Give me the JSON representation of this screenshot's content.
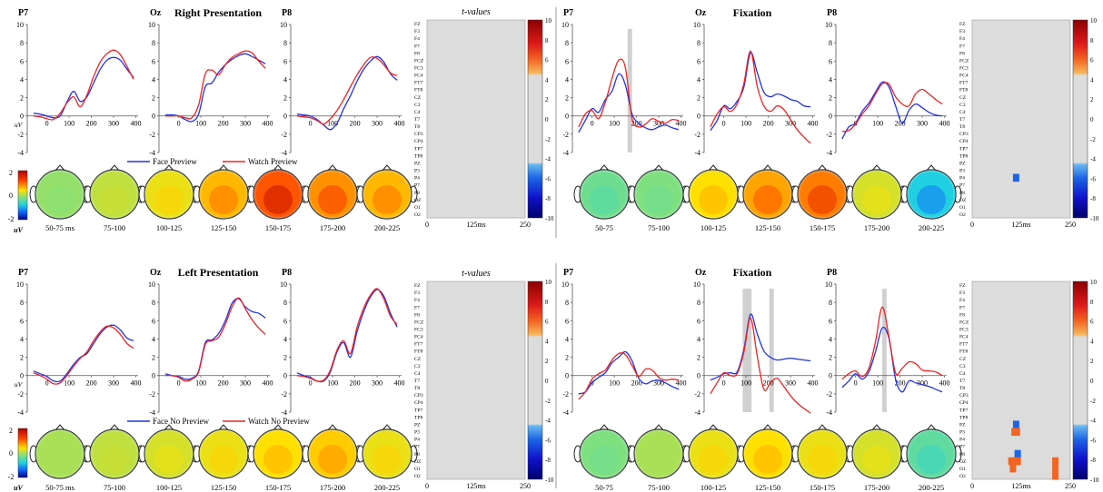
{
  "colors": {
    "blue": "#2233dd",
    "red": "#ee2222",
    "mask_gray": "#dcdcdc",
    "sig_bar": "#c8c8c8",
    "pos_orange": "#f26522",
    "neg_blue": "#1b64e6"
  },
  "channels": [
    "FZ",
    "F3",
    "F4",
    "F7",
    "F8",
    "FCZ",
    "FC3",
    "FC4",
    "FT7",
    "FT8",
    "CZ",
    "C3",
    "C4",
    "T7",
    "T8",
    "CP3",
    "CP4",
    "TP7",
    "TP8",
    "PZ",
    "P3",
    "P4",
    "P7",
    "P8",
    "OZ",
    "O1",
    "O2"
  ],
  "erp_axes": {
    "y_ticks": [
      "10",
      "8",
      "6",
      "4",
      "2",
      "0",
      "-2",
      "-4"
    ],
    "x_ticks": [
      "0",
      "100",
      "200",
      "300",
      "400"
    ],
    "y_unit": "uV"
  },
  "tval_axes": {
    "x_ticks": [
      "0",
      "125ms",
      "250"
    ],
    "label": "t-values"
  },
  "colorbar_ticks": [
    "10",
    "8",
    "6",
    "4",
    "2",
    "0",
    "-2",
    "-4",
    "-6",
    "-8",
    "-10"
  ],
  "topo_scale": {
    "max": "2",
    "zero": "0",
    "min": "-2",
    "unit": "uV"
  },
  "topo_labels_short": [
    "50-75",
    "75-100",
    "100-125",
    "125-150",
    "150-175",
    "175-200",
    "200-225"
  ],
  "topo_labels_first_ms": "50-75 ms",
  "panels": [
    {
      "title": "Right Presentation",
      "legend": [
        "Face Preview",
        "Watch Preview"
      ],
      "electrodes": [
        "P7",
        "Oz",
        "P8"
      ]
    },
    {
      "title": "Fixation",
      "electrodes": [
        "P7",
        "Oz",
        "P8"
      ]
    },
    {
      "title": "Left Presentation",
      "legend": [
        "Face No Preview",
        "Watch No Preview"
      ],
      "electrodes": [
        "P7",
        "Oz",
        "P8"
      ]
    },
    {
      "title": "Fixation",
      "electrodes": [
        "P7",
        "Oz",
        "P8"
      ]
    }
  ],
  "waves": [
    [
      {
        "blue": [
          0.3,
          0.2,
          0,
          -0.2,
          0,
          1.5,
          2.7,
          1.6,
          2.1,
          3.6,
          5.1,
          6.1,
          6.4,
          6.1,
          5.1,
          4.2
        ],
        "red": [
          0,
          -0.1,
          -0.3,
          -0.4,
          0.3,
          1.4,
          2.1,
          1.0,
          2.3,
          4.3,
          5.9,
          6.8,
          7.2,
          6.7,
          5.4,
          4.0
        ]
      },
      {
        "blue": [
          0.1,
          0.1,
          0,
          -0.4,
          -0.6,
          0.2,
          3.2,
          3.6,
          4.8,
          5.6,
          6.2,
          6.6,
          6.8,
          6.5,
          6.1,
          5.7
        ],
        "red": [
          0,
          0,
          0,
          -0.2,
          -0.2,
          1.2,
          4.6,
          5.0,
          4.5,
          5.6,
          6.4,
          6.8,
          7.1,
          6.9,
          6.0,
          5.2
        ]
      },
      {
        "blue": [
          0.2,
          0.1,
          0,
          -0.4,
          -1.0,
          -1.5,
          -0.8,
          0.8,
          2.2,
          3.8,
          5.1,
          6.0,
          6.5,
          5.9,
          4.6,
          3.9
        ],
        "red": [
          0,
          -0.1,
          -0.2,
          -0.5,
          -0.9,
          -0.3,
          0.6,
          1.8,
          3.2,
          4.5,
          5.6,
          6.4,
          6.3,
          5.6,
          4.7,
          4.4
        ]
      }
    ],
    [
      {
        "blue": [
          -1.8,
          -0.5,
          0.8,
          0.4,
          1.8,
          2.7,
          4.6,
          3.4,
          0.2,
          -0.8,
          -1.3,
          -1.5,
          -1.2,
          -1.0,
          -1.3,
          -1.5
        ],
        "red": [
          -1.2,
          0.2,
          0.6,
          -0.3,
          1.5,
          4.1,
          6.1,
          5.3,
          -0.3,
          -1.2,
          -0.9,
          -0.3,
          -0.6,
          -0.8,
          -0.4,
          -0.5
        ]
      },
      {
        "blue": [
          -1.6,
          -0.5,
          1.1,
          0.8,
          1.6,
          3.1,
          6.9,
          4.8,
          2.6,
          2.1,
          2.4,
          2.2,
          1.8,
          1.6,
          1.1,
          1.0
        ],
        "red": [
          -1.2,
          0.2,
          1.0,
          0.5,
          1.3,
          3.5,
          7.1,
          3.3,
          1.1,
          0.5,
          1.1,
          0.7,
          -0.4,
          -1.5,
          -2.3,
          -3.0
        ]
      },
      {
        "blue": [
          -2.5,
          -1.2,
          -0.8,
          0.5,
          1.4,
          2.6,
          3.7,
          3.2,
          1.1,
          -0.8,
          0.6,
          1.3,
          0.9,
          0.4,
          0.1,
          0.0
        ],
        "red": [
          -1.7,
          -1.6,
          -0.9,
          0.2,
          1.1,
          2.4,
          3.5,
          3.5,
          2.1,
          1.3,
          1.1,
          2.4,
          2.9,
          2.4,
          1.8,
          1.3
        ]
      }
    ],
    [
      {
        "blue": [
          0.5,
          0.2,
          -0.1,
          -0.6,
          -0.6,
          0.2,
          1.2,
          2.0,
          2.4,
          3.5,
          4.6,
          5.3,
          5.5,
          5.0,
          4.1,
          3.8
        ],
        "red": [
          0.3,
          0,
          -0.4,
          -0.9,
          -0.8,
          0,
          1.0,
          1.9,
          2.6,
          3.8,
          4.8,
          5.4,
          5.2,
          4.5,
          3.5,
          3.0
        ]
      },
      {
        "blue": [
          0.2,
          0,
          -0.1,
          -0.4,
          -0.3,
          0.5,
          3.6,
          3.9,
          4.6,
          6.0,
          7.9,
          8.4,
          7.5,
          7.0,
          6.8,
          6.3
        ],
        "red": [
          0,
          0,
          -0.2,
          -0.6,
          -0.4,
          0.4,
          3.4,
          3.8,
          4.2,
          5.6,
          7.5,
          8.5,
          7.3,
          6.1,
          5.2,
          4.5
        ]
      },
      {
        "blue": [
          0.3,
          0,
          -0.2,
          -0.6,
          -0.6,
          0.4,
          2.6,
          3.6,
          2.0,
          4.8,
          7.0,
          8.6,
          9.4,
          8.7,
          6.8,
          5.3
        ],
        "red": [
          0,
          -0.1,
          -0.3,
          -0.6,
          -0.5,
          0.6,
          2.8,
          3.8,
          2.4,
          5.3,
          7.4,
          8.8,
          9.5,
          8.4,
          6.5,
          5.6
        ]
      }
    ],
    [
      {
        "blue": [
          -2.0,
          -1.8,
          -0.8,
          -0.2,
          0.3,
          1.4,
          2.0,
          2.6,
          1.6,
          -0.3,
          -0.9,
          -0.6,
          -0.5,
          -0.8,
          -1.2,
          -1.5
        ],
        "red": [
          -2.6,
          -1.8,
          -0.4,
          0.2,
          0.6,
          1.7,
          2.4,
          2.3,
          1.1,
          -0.1,
          0.7,
          0.6,
          -0.2,
          -0.5,
          -0.4,
          -0.5
        ]
      },
      {
        "blue": [
          -0.5,
          -0.2,
          0.2,
          0.3,
          0.4,
          2.8,
          6.7,
          4.6,
          2.7,
          2.0,
          1.7,
          1.8,
          1.9,
          1.8,
          1.7,
          1.6
        ],
        "red": [
          -2.0,
          -0.8,
          0.3,
          0.0,
          0.2,
          2.5,
          6.3,
          2.2,
          -1.5,
          -0.8,
          -0.3,
          -1.2,
          -2.2,
          -3.0,
          -3.6,
          -4.1
        ]
      },
      {
        "blue": [
          -1.3,
          -0.6,
          0.2,
          -0.4,
          0.4,
          2.6,
          5.2,
          4.1,
          -0.4,
          -1.8,
          -0.6,
          -0.8,
          -1.0,
          -1.2,
          -1.5,
          -1.8
        ],
        "red": [
          -0.4,
          0.2,
          0.5,
          -0.1,
          0.8,
          3.7,
          7.5,
          4.3,
          0.3,
          0.8,
          1.5,
          1.3,
          0.6,
          0.5,
          0.4,
          0.0
        ]
      }
    ]
  ],
  "sig_windows": [
    [
      [],
      [],
      []
    ],
    [
      [
        [
          160,
          180
        ]
      ],
      [],
      []
    ],
    [
      [],
      [],
      []
    ],
    [
      [],
      [
        [
          85,
          125
        ],
        [
          205,
          225
        ]
      ],
      [
        [
          120,
          140
        ]
      ]
    ]
  ],
  "topo_values": [
    [
      -0.1,
      0.1,
      0.3,
      0.6,
      1.1,
      0.8,
      0.6
    ],
    [
      -0.3,
      -0.2,
      0.4,
      0.7,
      0.9,
      0.2,
      -0.8
    ],
    [
      0.0,
      0.1,
      0.2,
      0.3,
      0.4,
      0.5,
      0.3
    ],
    [
      -0.2,
      0.0,
      0.3,
      0.4,
      0.3,
      0.2,
      -0.4
    ]
  ],
  "tval_cells": [
    [],
    [
      {
        "ch": "P4",
        "t": 112,
        "sign": -1
      }
    ],
    [],
    [
      {
        "ch": "PZ",
        "t": 112,
        "sign": -1
      },
      {
        "ch": "P3",
        "t": 108,
        "sign": 1
      },
      {
        "ch": "P3",
        "t": 114,
        "sign": 1
      },
      {
        "ch": "P8",
        "t": 116,
        "sign": -1
      },
      {
        "ch": "OZ",
        "t": 100,
        "sign": 1
      },
      {
        "ch": "OZ",
        "t": 108,
        "sign": 1
      },
      {
        "ch": "OZ",
        "t": 116,
        "sign": 1
      },
      {
        "ch": "O1",
        "t": 104,
        "sign": 1
      },
      {
        "ch": "OZ",
        "t": 212,
        "sign": 1
      },
      {
        "ch": "O1",
        "t": 212,
        "sign": 1
      },
      {
        "ch": "O2",
        "t": 212,
        "sign": 1
      }
    ]
  ]
}
